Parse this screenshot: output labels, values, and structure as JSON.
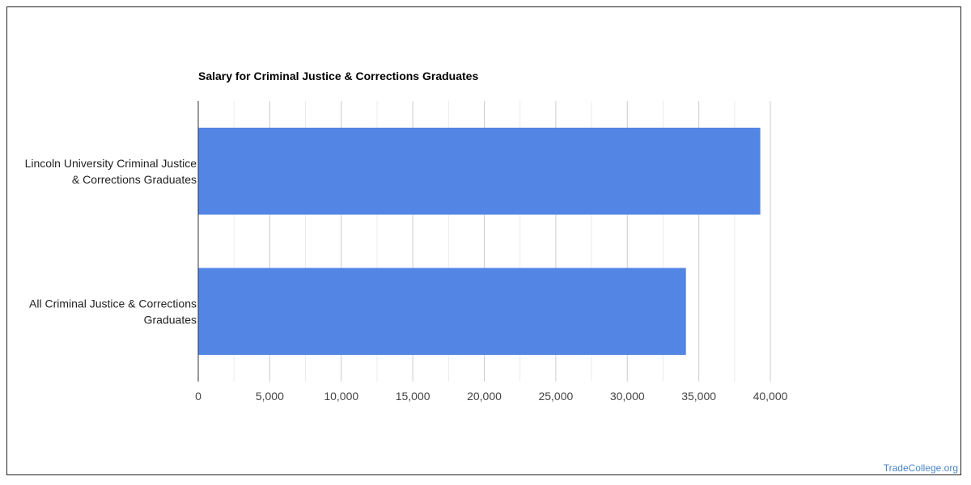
{
  "chart_data": {
    "type": "bar",
    "orientation": "horizontal",
    "title": "Salary for Criminal Justice & Corrections Graduates",
    "categories": [
      [
        "Lincoln University Criminal Justice",
        "& Corrections Graduates"
      ],
      [
        "All Criminal Justice & Corrections",
        "Graduates"
      ]
    ],
    "values": [
      39300,
      34100
    ],
    "xlim": [
      0,
      40000
    ],
    "xticks": [
      0,
      5000,
      10000,
      15000,
      20000,
      25000,
      30000,
      35000,
      40000
    ],
    "xtick_labels": [
      "0",
      "5,000",
      "10,000",
      "15,000",
      "20,000",
      "25,000",
      "30,000",
      "35,000",
      "40,000"
    ],
    "grid": true,
    "bar_color": "#5386e4"
  },
  "watermark": "TradeCollege.org"
}
